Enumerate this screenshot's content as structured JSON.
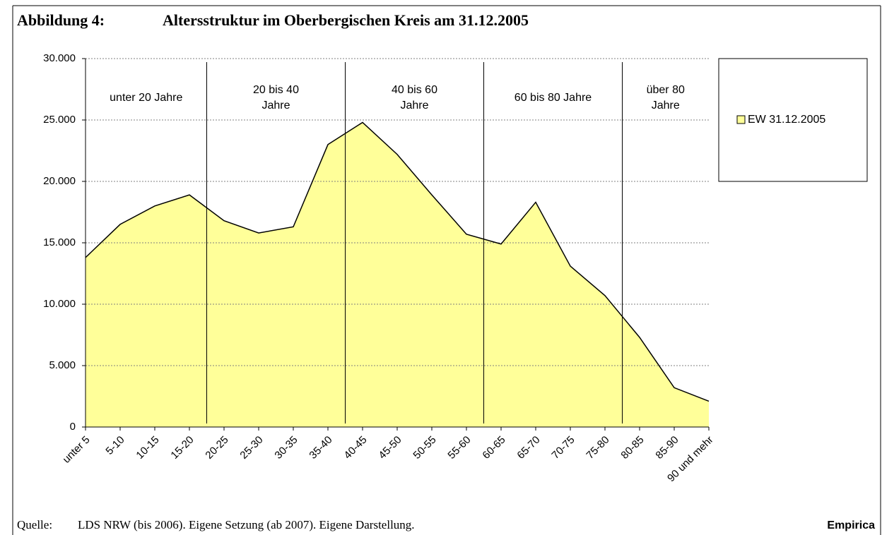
{
  "chart_data": {
    "type": "area",
    "figure_label": "Abbildung 4:",
    "title": "Altersstruktur im Oberbergischen Kreis am 31.12.2005",
    "categories": [
      "unter 5",
      "5-10",
      "10-15",
      "15-20",
      "20-25",
      "25-30",
      "30-35",
      "35-40",
      "40-45",
      "45-50",
      "50-55",
      "55-60",
      "60-65",
      "65-70",
      "70-75",
      "75-80",
      "80-85",
      "85-90",
      "90 und mehr"
    ],
    "series": [
      {
        "name": "EW 31.12.2005",
        "color": "#ffff99",
        "values": [
          13800,
          16500,
          18000,
          18900,
          16800,
          15800,
          16300,
          23000,
          24800,
          22200,
          18900,
          15700,
          14900,
          18300,
          13100,
          10700,
          7300,
          3200,
          2100
        ]
      }
    ],
    "ylim": [
      0,
      30000
    ],
    "yticks": [
      0,
      {
        "value": 5000,
        "label": "5.000"
      },
      {
        "value": 10000,
        "label": "10.000"
      },
      {
        "value": 15000,
        "label": "15.000"
      },
      {
        "value": 20000,
        "label": "20.000"
      },
      {
        "value": 25000,
        "label": "25.000"
      },
      {
        "value": 30000,
        "label": "30.000"
      }
    ],
    "grid": true,
    "legend": "right",
    "groups": [
      "unter 20 Jahre",
      "20 bis 40\nJahre",
      "40 bis 60\nJahre",
      "60 bis 80 Jahre",
      "über 80\nJahre"
    ],
    "source_label": "Quelle:",
    "source": "LDS NRW (bis 2006). Eigene Setzung (ab 2007). Eigene Darstellung.",
    "brand": "Empirica"
  }
}
